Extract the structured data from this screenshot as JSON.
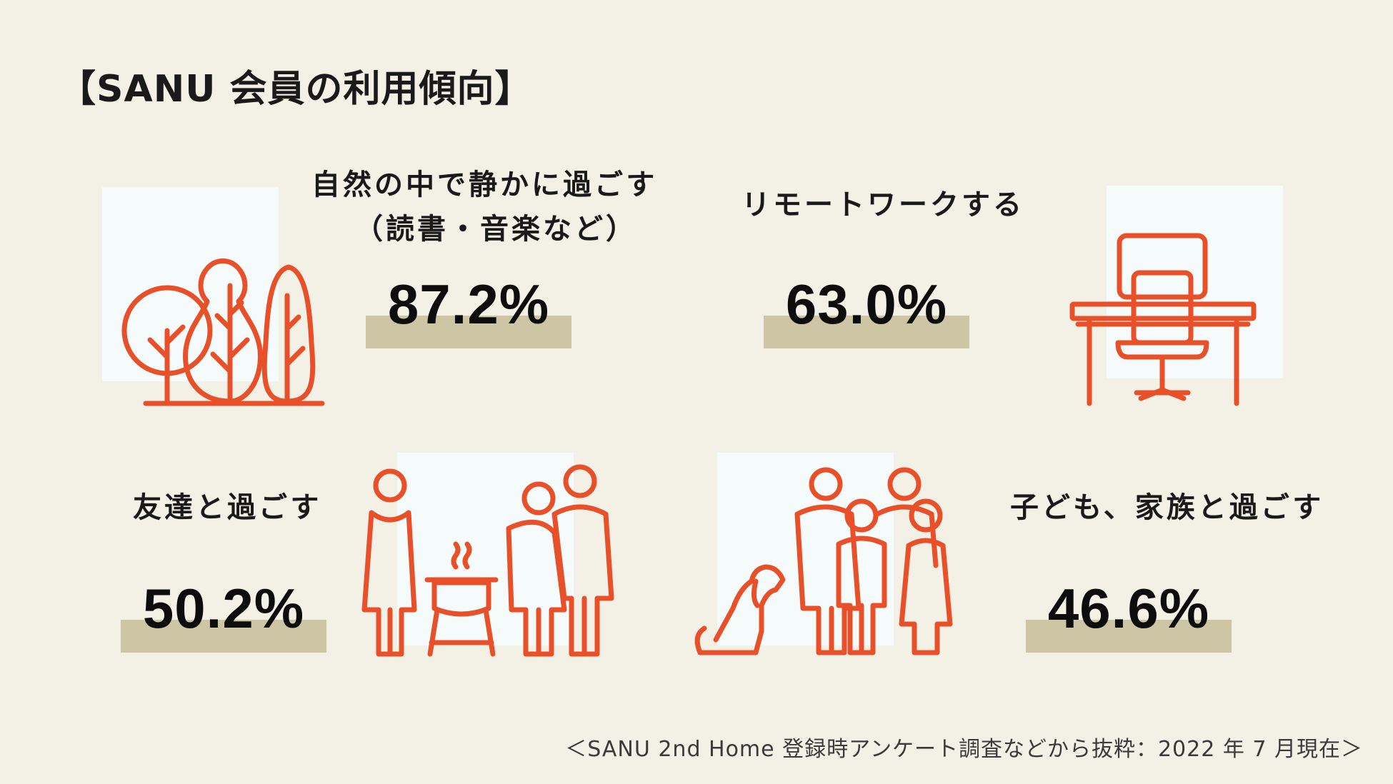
{
  "title": "【SANU 会員の利用傾向】",
  "accent_color": "#e8502a",
  "stat_bar_color": "#cdc6a4",
  "panel_color": "#f5fafb",
  "stats": [
    {
      "label_lines": [
        "自然の中で静かに過ごす",
        "（読書・音楽など）"
      ],
      "value": "87.2%",
      "icon": "trees-icon"
    },
    {
      "label_lines": [
        "リモートワークする"
      ],
      "value": "63.0%",
      "icon": "desk-chair-icon"
    },
    {
      "label_lines": [
        "友達と過ごす"
      ],
      "value": "50.2%",
      "icon": "friends-icon"
    },
    {
      "label_lines": [
        "子ども、家族と過ごす"
      ],
      "value": "46.6%",
      "icon": "family-dog-icon"
    }
  ],
  "footer": "＜SANU 2nd Home 登録時アンケート調査などから抜粋：2022 年 7 月現在＞"
}
